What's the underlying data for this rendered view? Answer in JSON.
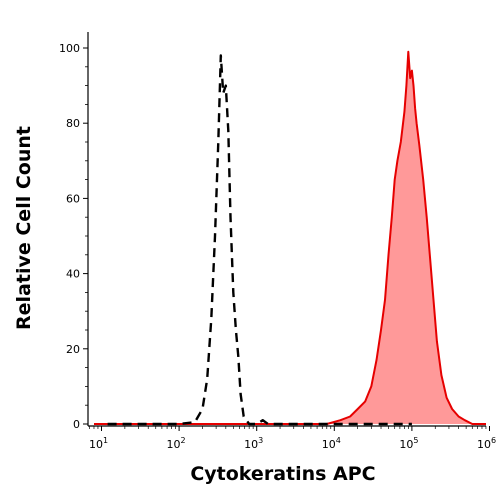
{
  "chart_data": {
    "type": "area",
    "title": "",
    "xlabel": "Cytokeratins APC",
    "ylabel": "Relative Cell Count",
    "x_scale": "log",
    "xlim": [
      10,
      1000000
    ],
    "ylim": [
      0,
      100
    ],
    "x_ticks": [
      {
        "value": 10,
        "base": "10",
        "exp": "1"
      },
      {
        "value": 100,
        "base": "10",
        "exp": "2"
      },
      {
        "value": 1000,
        "base": "10",
        "exp": "3"
      },
      {
        "value": 10000,
        "base": "10",
        "exp": "4"
      },
      {
        "value": 100000,
        "base": "10",
        "exp": "5"
      },
      {
        "value": 1000000,
        "base": "10",
        "exp": "6"
      }
    ],
    "y_ticks": [
      0,
      20,
      40,
      60,
      80,
      100
    ],
    "grid": false,
    "legend": "none",
    "series": [
      {
        "style": "dashed",
        "color": "#000000",
        "points": [
          [
            12,
            0
          ],
          [
            100,
            0
          ],
          [
            160,
            0.5
          ],
          [
            200,
            4
          ],
          [
            230,
            12
          ],
          [
            260,
            28
          ],
          [
            290,
            50
          ],
          [
            320,
            75
          ],
          [
            345,
            98
          ],
          [
            370,
            88
          ],
          [
            400,
            90
          ],
          [
            430,
            78
          ],
          [
            460,
            55
          ],
          [
            500,
            35
          ],
          [
            540,
            25
          ],
          [
            580,
            18
          ],
          [
            620,
            8
          ],
          [
            680,
            2
          ],
          [
            800,
            0
          ],
          [
            1000,
            0
          ],
          [
            1200,
            1
          ],
          [
            1400,
            0
          ],
          [
            100000,
            0
          ]
        ]
      },
      {
        "style": "filled",
        "color": "#e60000",
        "fill": "#ff9999",
        "points": [
          [
            8,
            0
          ],
          [
            1000,
            0
          ],
          [
            8000,
            0
          ],
          [
            12000,
            1
          ],
          [
            16000,
            2
          ],
          [
            20000,
            4
          ],
          [
            25000,
            6
          ],
          [
            30000,
            10
          ],
          [
            35000,
            17
          ],
          [
            40000,
            25
          ],
          [
            45000,
            33
          ],
          [
            50000,
            45
          ],
          [
            55000,
            55
          ],
          [
            60000,
            65
          ],
          [
            65000,
            70
          ],
          [
            72000,
            75
          ],
          [
            80000,
            83
          ],
          [
            85000,
            90
          ],
          [
            90000,
            99
          ],
          [
            95000,
            92
          ],
          [
            100000,
            94
          ],
          [
            105000,
            90
          ],
          [
            110000,
            84
          ],
          [
            115000,
            80
          ],
          [
            125000,
            74
          ],
          [
            140000,
            65
          ],
          [
            155000,
            55
          ],
          [
            170000,
            45
          ],
          [
            190000,
            33
          ],
          [
            210000,
            22
          ],
          [
            240000,
            13
          ],
          [
            280000,
            7
          ],
          [
            330000,
            4
          ],
          [
            400000,
            2
          ],
          [
            480000,
            1
          ],
          [
            600000,
            0
          ],
          [
            1100000,
            0
          ]
        ]
      }
    ]
  }
}
